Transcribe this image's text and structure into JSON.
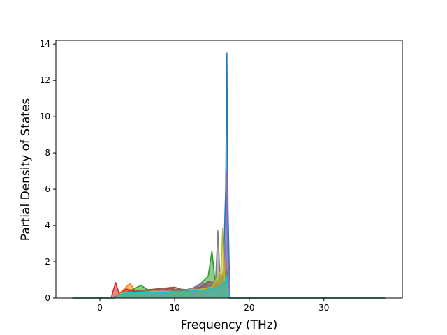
{
  "chart_data": {
    "type": "line",
    "title": "",
    "xlabel": "Frequency (THz)",
    "ylabel": "Partial Density of States",
    "xlim": [
      -5.9,
      40.5
    ],
    "ylim": [
      0,
      14.2
    ],
    "xticks": [
      0,
      10,
      20,
      30
    ],
    "yticks": [
      0,
      2,
      4,
      6,
      8,
      10,
      12,
      14
    ],
    "grid": false,
    "legend": "none",
    "x_range_of_data": [
      -3.7,
      38.2
    ],
    "series": [
      {
        "color": "#1f77b4",
        "points": [
          [
            -3.7,
            0
          ],
          [
            1.5,
            0
          ],
          [
            2.5,
            0.15
          ],
          [
            4,
            0.3
          ],
          [
            6,
            0.25
          ],
          [
            8,
            0.3
          ],
          [
            10,
            0.35
          ],
          [
            12,
            0.4
          ],
          [
            14,
            0.5
          ],
          [
            15.5,
            0.6
          ],
          [
            16.5,
            1.2
          ],
          [
            16.85,
            6
          ],
          [
            17.0,
            13.5
          ],
          [
            17.15,
            5
          ],
          [
            17.4,
            0
          ],
          [
            38.2,
            0
          ]
        ]
      },
      {
        "color": "#ff7f0e",
        "points": [
          [
            -3.7,
            0
          ],
          [
            2,
            0
          ],
          [
            3,
            0.4
          ],
          [
            4,
            0.8
          ],
          [
            5,
            0.3
          ],
          [
            6.5,
            0.4
          ],
          [
            8,
            0.5
          ],
          [
            10,
            0.35
          ],
          [
            12,
            0.45
          ],
          [
            14,
            0.6
          ],
          [
            16,
            0.8
          ],
          [
            16.9,
            2
          ],
          [
            17.3,
            0
          ],
          [
            38.2,
            0
          ]
        ]
      },
      {
        "color": "#2ca02c",
        "points": [
          [
            -3.7,
            0
          ],
          [
            2,
            0
          ],
          [
            3.5,
            0.3
          ],
          [
            5.5,
            0.7
          ],
          [
            7,
            0.3
          ],
          [
            9,
            0.35
          ],
          [
            11,
            0.4
          ],
          [
            13,
            0.6
          ],
          [
            14.5,
            1.2
          ],
          [
            15.0,
            2.6
          ],
          [
            15.4,
            1.0
          ],
          [
            16,
            0.7
          ],
          [
            17,
            1.5
          ],
          [
            17.3,
            0
          ],
          [
            38.2,
            0
          ]
        ]
      },
      {
        "color": "#d62728",
        "points": [
          [
            -3.7,
            0
          ],
          [
            1.5,
            0
          ],
          [
            2.1,
            0.85
          ],
          [
            2.6,
            0.2
          ],
          [
            3.5,
            0.5
          ],
          [
            5,
            0.35
          ],
          [
            7,
            0.3
          ],
          [
            9.5,
            0.55
          ],
          [
            11,
            0.3
          ],
          [
            13,
            0.4
          ],
          [
            15,
            0.5
          ],
          [
            17,
            0.6
          ],
          [
            17.3,
            0
          ],
          [
            38.2,
            0
          ]
        ]
      },
      {
        "color": "#9467bd",
        "points": [
          [
            -3.7,
            0
          ],
          [
            2,
            0
          ],
          [
            3,
            0.3
          ],
          [
            5,
            0.35
          ],
          [
            7,
            0.3
          ],
          [
            9,
            0.35
          ],
          [
            10.5,
            0.5
          ],
          [
            12,
            0.45
          ],
          [
            13.5,
            0.8
          ],
          [
            15,
            0.7
          ],
          [
            16.5,
            1.2
          ],
          [
            16.85,
            3
          ],
          [
            17.0,
            7.0
          ],
          [
            17.15,
            2.5
          ],
          [
            17.4,
            0
          ],
          [
            38.2,
            0
          ]
        ]
      },
      {
        "color": "#8c564b",
        "points": [
          [
            -3.7,
            0
          ],
          [
            2,
            0
          ],
          [
            3,
            0.2
          ],
          [
            5,
            0.4
          ],
          [
            7.5,
            0.5
          ],
          [
            10,
            0.6
          ],
          [
            11.5,
            0.4
          ],
          [
            13.5,
            0.6
          ],
          [
            14.5,
            0.9
          ],
          [
            16,
            0.8
          ],
          [
            17,
            0.7
          ],
          [
            17.3,
            0
          ],
          [
            38.2,
            0
          ]
        ]
      },
      {
        "color": "#e377c2",
        "points": [
          [
            -3.7,
            0
          ],
          [
            2,
            0
          ],
          [
            3,
            0.3
          ],
          [
            5,
            0.3
          ],
          [
            7,
            0.35
          ],
          [
            9,
            0.4
          ],
          [
            11,
            0.35
          ],
          [
            12.3,
            0.5
          ],
          [
            14,
            0.45
          ],
          [
            16,
            0.5
          ],
          [
            17,
            0.6
          ],
          [
            17.3,
            0
          ],
          [
            38.2,
            0
          ]
        ]
      },
      {
        "color": "#7f7f7f",
        "points": [
          [
            -3.7,
            0
          ],
          [
            2,
            0
          ],
          [
            3.5,
            0.3
          ],
          [
            5.5,
            0.3
          ],
          [
            8,
            0.35
          ],
          [
            10,
            0.4
          ],
          [
            12,
            0.4
          ],
          [
            14,
            0.5
          ],
          [
            15.5,
            1.0
          ],
          [
            15.8,
            3.7
          ],
          [
            16.1,
            1.0
          ],
          [
            17,
            0.8
          ],
          [
            17.3,
            0
          ],
          [
            38.2,
            0
          ]
        ]
      },
      {
        "color": "#bcbd22",
        "points": [
          [
            -3.7,
            0
          ],
          [
            2,
            0
          ],
          [
            3,
            0.3
          ],
          [
            5,
            0.3
          ],
          [
            7,
            0.35
          ],
          [
            9,
            0.35
          ],
          [
            11,
            0.3
          ],
          [
            13,
            0.45
          ],
          [
            15,
            0.6
          ],
          [
            16.2,
            1.5
          ],
          [
            16.45,
            3.85
          ],
          [
            16.7,
            1.0
          ],
          [
            17,
            0.7
          ],
          [
            17.3,
            0
          ],
          [
            38.2,
            0
          ]
        ]
      },
      {
        "color": "#17becf",
        "points": [
          [
            -3.7,
            0
          ],
          [
            2,
            0
          ],
          [
            3,
            0.25
          ],
          [
            5,
            0.3
          ],
          [
            7,
            0.3
          ],
          [
            9,
            0.3
          ],
          [
            11,
            0.35
          ],
          [
            13,
            0.4
          ],
          [
            15,
            0.5
          ],
          [
            16,
            0.6
          ],
          [
            16.8,
            0.9
          ],
          [
            17.0,
            1.2
          ],
          [
            17.3,
            0
          ],
          [
            38.2,
            0
          ]
        ]
      }
    ]
  }
}
